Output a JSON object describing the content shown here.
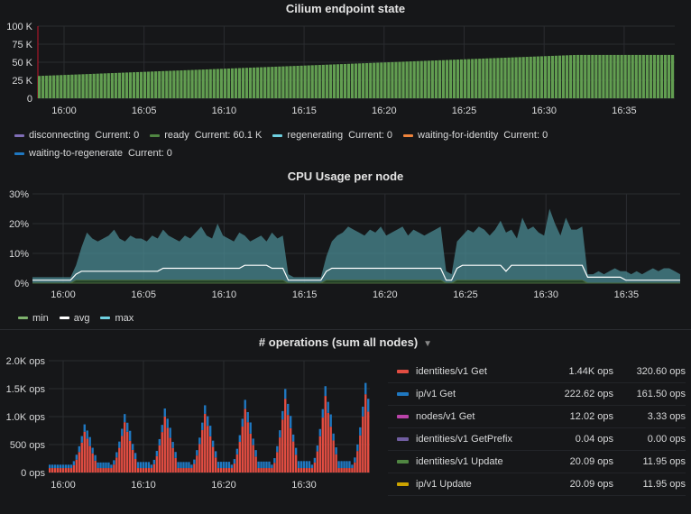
{
  "panels": {
    "endpoint": {
      "title": "Cilium endpoint state",
      "y_ticks": [
        "100 K",
        "75 K",
        "50 K",
        "25 K",
        "0"
      ],
      "x_ticks": [
        "16:00",
        "16:05",
        "16:10",
        "16:15",
        "16:20",
        "16:25",
        "16:30",
        "16:35"
      ],
      "legend": [
        {
          "name": "disconnecting",
          "current": "Current: 0",
          "color": "#806eb7"
        },
        {
          "name": "ready",
          "current": "Current: 60.1 K",
          "color": "#508642"
        },
        {
          "name": "regenerating",
          "current": "Current: 0",
          "color": "#6ed0e0"
        },
        {
          "name": "waiting-for-identity",
          "current": "Current: 0",
          "color": "#ef843c"
        },
        {
          "name": "waiting-to-regenerate",
          "current": "Current: 0",
          "color": "#1f78c1"
        }
      ]
    },
    "cpu": {
      "title": "CPU Usage per node",
      "y_ticks": [
        "30%",
        "20%",
        "10%",
        "0%"
      ],
      "x_ticks": [
        "16:00",
        "16:05",
        "16:10",
        "16:15",
        "16:20",
        "16:25",
        "16:30",
        "16:35"
      ],
      "legend": [
        {
          "name": "min",
          "color": "#7eb26d"
        },
        {
          "name": "avg",
          "color": "#ffffff"
        },
        {
          "name": "max",
          "color": "#6ed0e0"
        }
      ]
    },
    "ops": {
      "title": "# operations (sum all nodes)",
      "y_ticks": [
        "2.0K ops",
        "1.5K ops",
        "1.0K ops",
        "500 ops",
        "0 ops"
      ],
      "x_ticks": [
        "16:00",
        "16:10",
        "16:20",
        "16:30"
      ],
      "table": [
        {
          "name": "identities/v1 Get",
          "c1": "1.44K ops",
          "c2": "320.60 ops",
          "color": "#e24d42"
        },
        {
          "name": "ip/v1 Get",
          "c1": "222.62 ops",
          "c2": "161.50 ops",
          "color": "#1f78c1"
        },
        {
          "name": "nodes/v1 Get",
          "c1": "12.02 ops",
          "c2": "3.33 ops",
          "color": "#ba43a9"
        },
        {
          "name": "identities/v1 GetPrefix",
          "c1": "0.04 ops",
          "c2": "0.00 ops",
          "color": "#705da0"
        },
        {
          "name": "identities/v1 Update",
          "c1": "20.09 ops",
          "c2": "11.95 ops",
          "color": "#508642"
        },
        {
          "name": "ip/v1 Update",
          "c1": "20.09 ops",
          "c2": "11.95 ops",
          "color": "#cca300"
        }
      ]
    }
  },
  "chart_data": [
    {
      "type": "bar",
      "title": "Cilium endpoint state",
      "ylim": [
        0,
        100000
      ],
      "x_range": [
        "15:57",
        "16:38"
      ],
      "series": [
        {
          "name": "ready",
          "start": 31000,
          "end": 60100
        }
      ]
    },
    {
      "type": "area",
      "title": "CPU Usage per node",
      "ylim": [
        0,
        30
      ],
      "x_range": [
        "15:57",
        "16:38"
      ],
      "series": [
        {
          "name": "max",
          "values": [
            2,
            2,
            2,
            2,
            2,
            2,
            2,
            2,
            6,
            12,
            17,
            15,
            14,
            15,
            16,
            18,
            15,
            14,
            16,
            15,
            15,
            14,
            16,
            15,
            18,
            16,
            15,
            14,
            16,
            15,
            17,
            19,
            16,
            15,
            20,
            16,
            15,
            14,
            17,
            16,
            14,
            15,
            16,
            14,
            17,
            15,
            16,
            3,
            2,
            2,
            2,
            2,
            2,
            2,
            9,
            14,
            16,
            17,
            19,
            18,
            17,
            16,
            18,
            17,
            19,
            16,
            17,
            18,
            19,
            16,
            18,
            17,
            16,
            17,
            18,
            19,
            4,
            3,
            14,
            16,
            18,
            17,
            19,
            18,
            16,
            18,
            21,
            17,
            18,
            15,
            22,
            18,
            19,
            17,
            16,
            25,
            20,
            16,
            22,
            18,
            18,
            19,
            3,
            3,
            4,
            3,
            4,
            5,
            4,
            4,
            3,
            4,
            3,
            4,
            5,
            4,
            5,
            5,
            4,
            3
          ],
          "note": "upper envelope (percent)"
        },
        {
          "name": "avg",
          "values": [
            1,
            1,
            1,
            1,
            1,
            1,
            1,
            1,
            3,
            4,
            4,
            4,
            4,
            4,
            4,
            4,
            4,
            4,
            4,
            4,
            4,
            4,
            4,
            4,
            5,
            5,
            5,
            5,
            5,
            5,
            5,
            5,
            5,
            5,
            5,
            5,
            5,
            5,
            5,
            6,
            6,
            6,
            6,
            6,
            5,
            5,
            5,
            1,
            1,
            1,
            1,
            1,
            1,
            1,
            4,
            5,
            5,
            5,
            5,
            5,
            5,
            5,
            5,
            5,
            5,
            5,
            5,
            5,
            5,
            5,
            5,
            5,
            5,
            5,
            5,
            5,
            1,
            1,
            5,
            6,
            6,
            6,
            6,
            6,
            6,
            6,
            6,
            4,
            6,
            6,
            6,
            6,
            6,
            6,
            6,
            6,
            6,
            6,
            6,
            6,
            6,
            6,
            2,
            2,
            2,
            2,
            2,
            2,
            2,
            1,
            1,
            1,
            1,
            1,
            1,
            1,
            1,
            1,
            1,
            1
          ]
        },
        {
          "name": "min",
          "values": [
            0,
            0,
            0,
            0,
            0,
            0,
            0,
            0,
            1,
            1,
            1,
            1,
            1,
            1,
            1,
            1,
            1,
            1,
            1,
            1,
            1,
            1,
            1,
            1,
            1,
            1,
            1,
            1,
            1,
            1,
            1,
            1,
            1,
            1,
            1,
            1,
            1,
            1,
            1,
            1,
            1,
            1,
            1,
            1,
            1,
            1,
            1,
            0,
            0,
            0,
            0,
            0,
            0,
            0,
            1,
            1,
            1,
            1,
            1,
            1,
            1,
            1,
            1,
            1,
            1,
            1,
            1,
            1,
            1,
            1,
            1,
            1,
            1,
            1,
            1,
            1,
            0,
            0,
            1,
            1,
            1,
            1,
            1,
            1,
            1,
            1,
            1,
            1,
            1,
            1,
            1,
            1,
            1,
            1,
            1,
            1,
            1,
            1,
            1,
            1,
            1,
            1,
            0,
            0,
            0,
            0,
            0,
            0,
            0,
            0,
            0,
            0,
            0,
            0,
            0,
            0,
            0,
            0,
            0,
            0
          ]
        }
      ]
    },
    {
      "type": "bar",
      "title": "# operations (sum all nodes)",
      "ylim": [
        0,
        2000
      ],
      "x_range": [
        "15:57",
        "16:38"
      ],
      "stacked": true,
      "series": [
        {
          "name": "identities/v1 Get",
          "peaks": [
            730,
            900,
            1000,
            1050,
            1140,
            1320,
            1370,
            1400
          ],
          "base": 80
        },
        {
          "name": "ip/v1 Get",
          "peaks": [
            100,
            120,
            120,
            130,
            140,
            160,
            160,
            200
          ],
          "base": 60
        }
      ]
    }
  ]
}
